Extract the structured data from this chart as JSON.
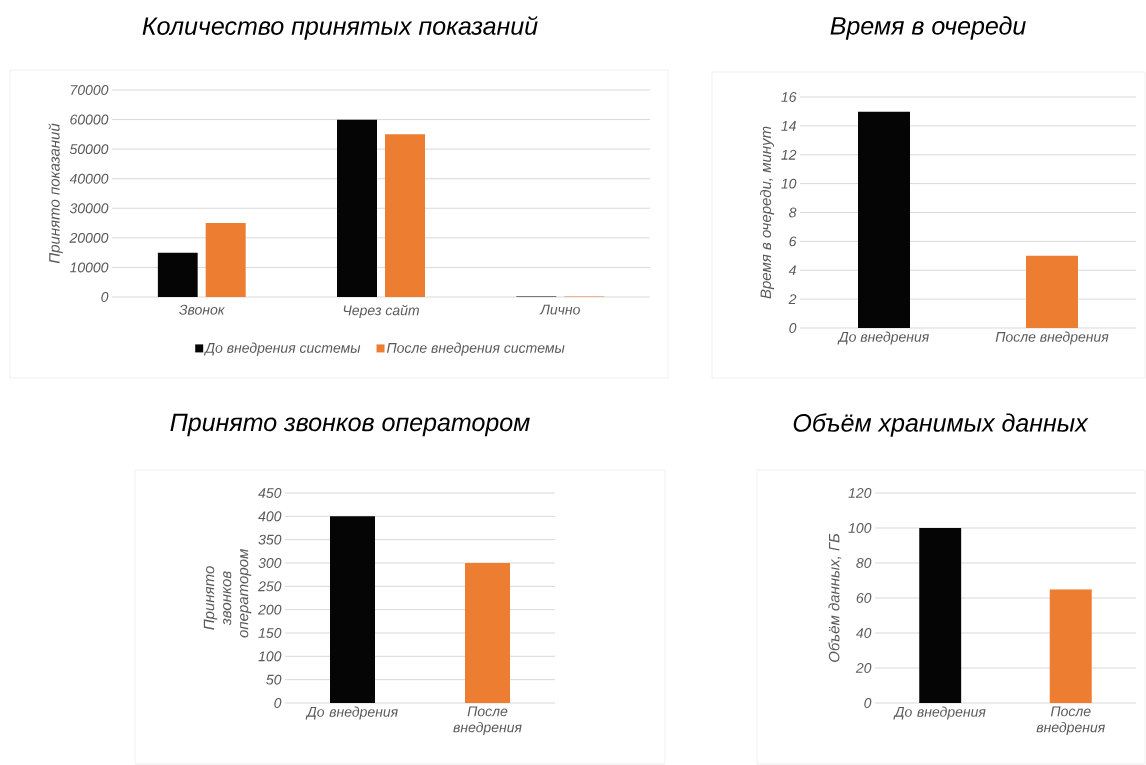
{
  "chart_data": [
    {
      "type": "bar",
      "title": "Количество принятых показаний",
      "ylabel": "Принято показаний",
      "categories": [
        "Звонок",
        "Через сайт",
        "Лично"
      ],
      "series": [
        {
          "name": "До внедрения системы",
          "color": "#050505",
          "values": [
            15000,
            60000,
            200
          ]
        },
        {
          "name": "После внедрения системы",
          "color": "#ed7d31",
          "values": [
            25000,
            55000,
            200
          ]
        }
      ],
      "ylim": [
        0,
        70000
      ],
      "yticks": [
        0,
        10000,
        20000,
        30000,
        40000,
        50000,
        60000,
        70000
      ],
      "grid": "y",
      "legend": "bottom"
    },
    {
      "type": "bar",
      "title": "Время в очереди",
      "ylabel": "Время в очереди, минут",
      "categories": [
        "До внедрения",
        "После внедрения"
      ],
      "values": [
        15,
        5
      ],
      "colors": [
        "#050505",
        "#ed7d31"
      ],
      "ylim": [
        0,
        16
      ],
      "yticks": [
        0,
        2,
        4,
        6,
        8,
        10,
        12,
        14,
        16
      ],
      "grid": "y"
    },
    {
      "type": "bar",
      "title": "Принято звонков оператором",
      "ylabel": "Принято звонков оператором",
      "categories": [
        "До внедрения",
        "После внедрения"
      ],
      "values": [
        400,
        300
      ],
      "colors": [
        "#050505",
        "#ed7d31"
      ],
      "ylim": [
        0,
        450
      ],
      "yticks": [
        0,
        50,
        100,
        150,
        200,
        250,
        300,
        350,
        400,
        450
      ],
      "grid": "y"
    },
    {
      "type": "bar",
      "title": "Объём хранимых данных",
      "ylabel": "Объём данных, ГБ",
      "categories": [
        "До внедрения",
        "После внедрения"
      ],
      "values": [
        100,
        65
      ],
      "colors": [
        "#050505",
        "#ed7d31"
      ],
      "ylim": [
        0,
        120
      ],
      "yticks": [
        0,
        20,
        40,
        60,
        80,
        100,
        120
      ],
      "grid": "y"
    }
  ]
}
